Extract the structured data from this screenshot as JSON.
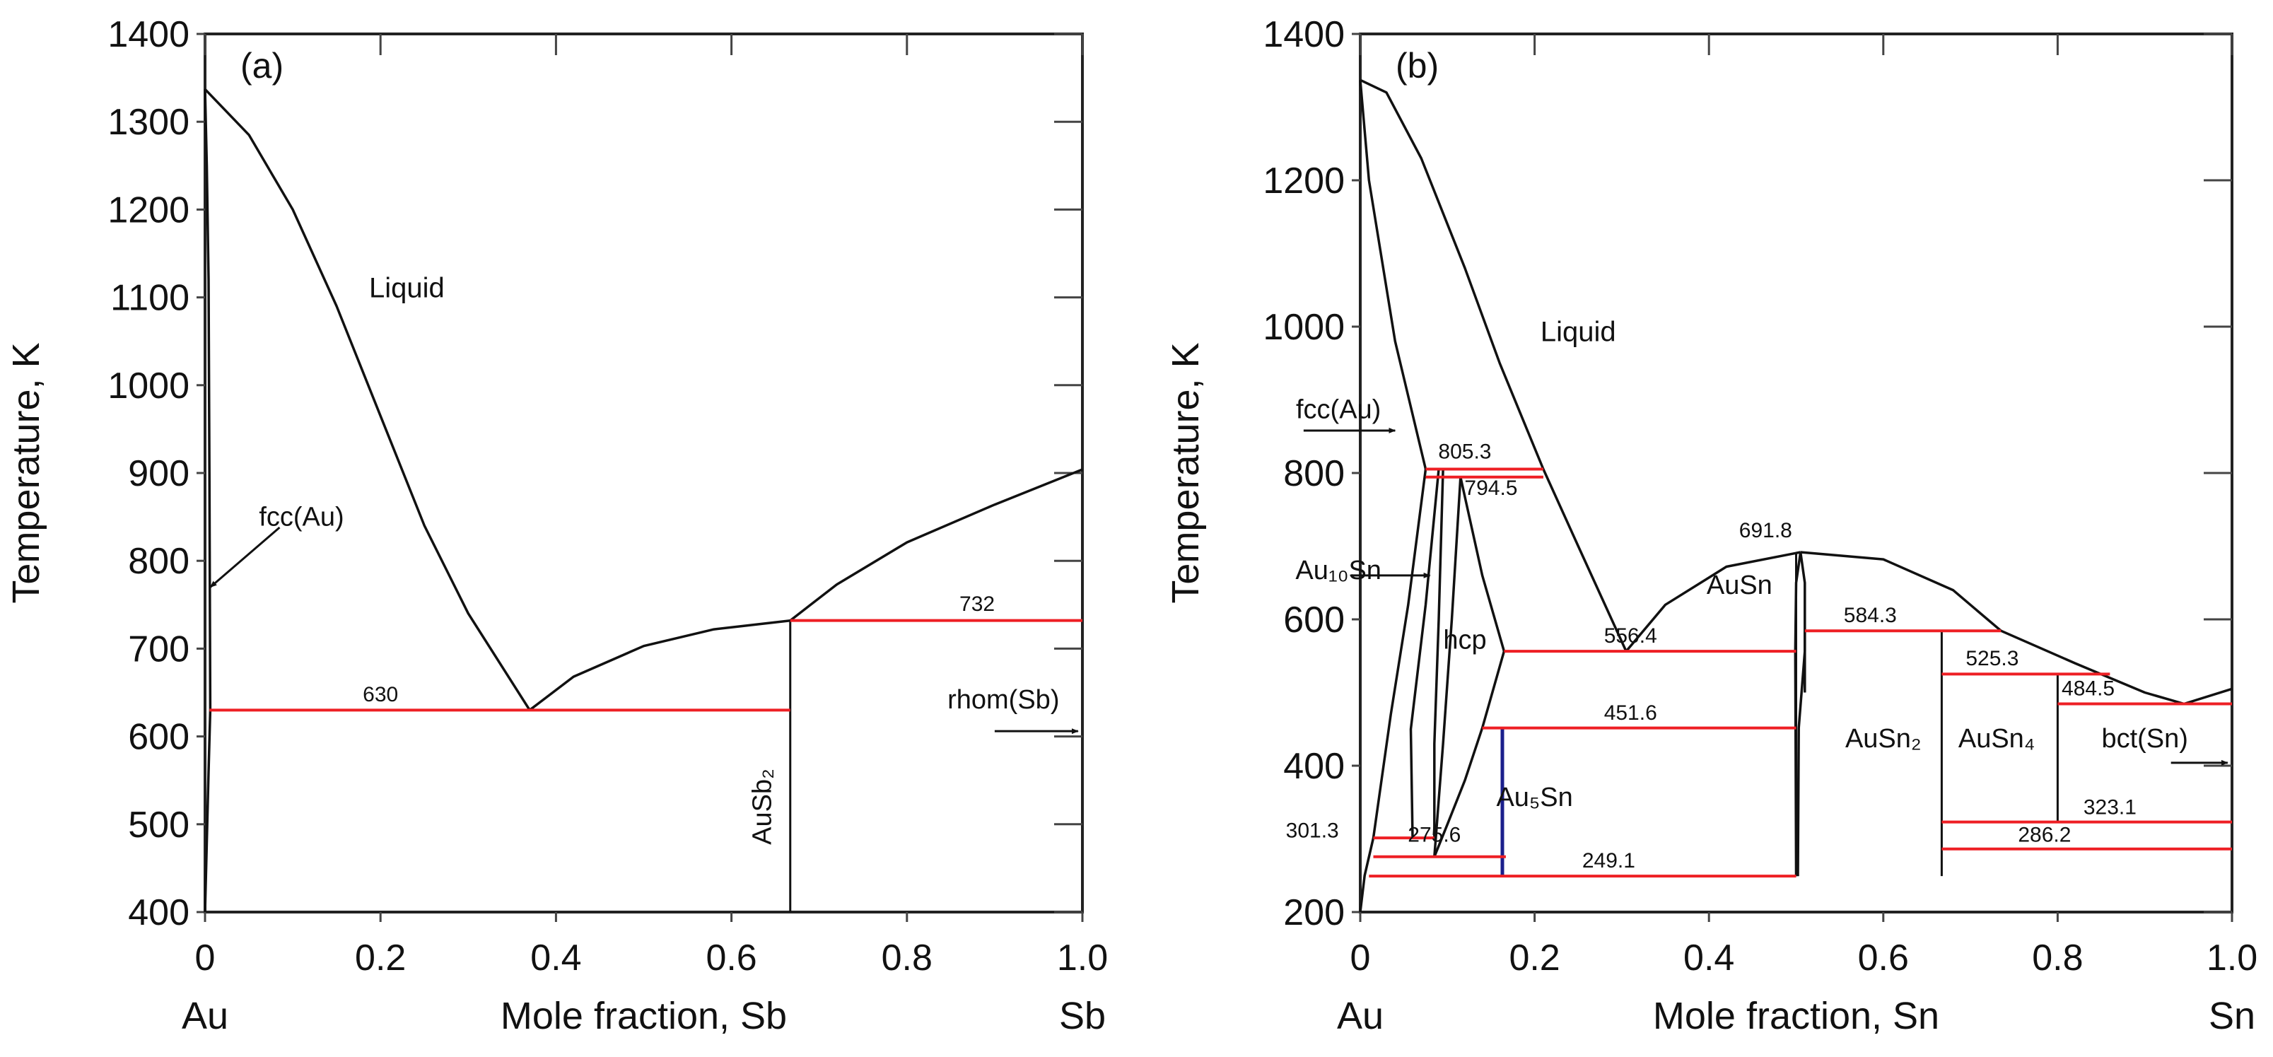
{
  "chart_data": [
    {
      "type": "phase_diagram",
      "panel_label": "(a)",
      "system": "Au-Sb",
      "xlabel": "Mole fraction, Sb",
      "ylabel": "Temperature, K",
      "xlim": [
        0,
        1.0
      ],
      "ylim": [
        400,
        1400
      ],
      "x_ticks": [
        "0",
        "0.2",
        "0.4",
        "0.6",
        "0.8",
        "1.0"
      ],
      "y_ticks": [
        "400",
        "500",
        "600",
        "700",
        "800",
        "900",
        "1000",
        "1100",
        "1200",
        "1300",
        "1400"
      ],
      "x_end_labels": {
        "left": "Au",
        "right": "Sb"
      },
      "regions": [
        {
          "label": "Liquid",
          "x": 0.23,
          "T": 1100
        },
        {
          "label": "fcc(Au)",
          "x": 0.11,
          "T": 840
        },
        {
          "label": "rhom(Sb)",
          "x": 0.91,
          "T": 632
        },
        {
          "label": "AuSb₂",
          "x": 0.645,
          "T": 520
        }
      ],
      "invariants": [
        {
          "T": 630,
          "x_from": 0.005,
          "x_to": 0.667,
          "label": "630"
        },
        {
          "T": 732,
          "x_from": 0.667,
          "x_to": 1.0,
          "label": "732"
        }
      ],
      "compounds": [
        {
          "name": "AuSb₂",
          "x": 0.667,
          "T_from": 400,
          "T_to": 732
        }
      ],
      "curves": [
        {
          "name": "liquidus-Au",
          "points": [
            [
              0,
              1337
            ],
            [
              0.05,
              1285
            ],
            [
              0.1,
              1200
            ],
            [
              0.15,
              1090
            ],
            [
              0.2,
              965
            ],
            [
              0.25,
              840
            ],
            [
              0.3,
              740
            ],
            [
              0.37,
              630
            ]
          ]
        },
        {
          "name": "liquidus-AuSb2",
          "points": [
            [
              0.37,
              630
            ],
            [
              0.42,
              668
            ],
            [
              0.5,
              703
            ],
            [
              0.58,
              722
            ],
            [
              0.667,
              732
            ]
          ]
        },
        {
          "name": "liquidus-Sb",
          "points": [
            [
              0.667,
              732
            ],
            [
              0.72,
              773
            ],
            [
              0.8,
              821
            ],
            [
              0.9,
              864
            ],
            [
              1.0,
              904
            ]
          ]
        },
        {
          "name": "solidus-fcc",
          "points": [
            [
              0,
              1337
            ],
            [
              0.002,
              1250
            ],
            [
              0.004,
              1120
            ],
            [
              0.005,
              900
            ],
            [
              0.006,
              630
            ],
            [
              0.004,
              560
            ],
            [
              0.002,
              480
            ],
            [
              0,
              400
            ]
          ]
        }
      ]
    },
    {
      "type": "phase_diagram",
      "panel_label": "(b)",
      "system": "Au-Sn",
      "xlabel": "Mole fraction, Sn",
      "ylabel": "Temperature, K",
      "xlim": [
        0,
        1.0
      ],
      "ylim": [
        200,
        1400
      ],
      "x_ticks": [
        "0",
        "0.2",
        "0.4",
        "0.6",
        "0.8",
        "1.0"
      ],
      "y_ticks": [
        "200",
        "400",
        "600",
        "800",
        "1000",
        "1200",
        "1400"
      ],
      "x_end_labels": {
        "left": "Au",
        "right": "Sn"
      },
      "regions": [
        {
          "label": "Liquid",
          "x": 0.25,
          "T": 980
        },
        {
          "label": "fcc(Au)",
          "x": -0.025,
          "T": 875
        },
        {
          "label": "Au₁₀Sn",
          "x": -0.025,
          "T": 655
        },
        {
          "label": "hcp",
          "x": 0.12,
          "T": 560
        },
        {
          "label": "AuSn",
          "x": 0.435,
          "T": 635
        },
        {
          "label": "Au₅Sn",
          "x": 0.2,
          "T": 345
        },
        {
          "label": "AuSn₂",
          "x": 0.6,
          "T": 425
        },
        {
          "label": "AuSn₄",
          "x": 0.73,
          "T": 425
        },
        {
          "label": "bct(Sn)",
          "x": 0.9,
          "T": 425
        }
      ],
      "invariants": [
        {
          "T": 805.3,
          "x_from": 0.075,
          "x_to": 0.21,
          "label": "805.3"
        },
        {
          "T": 794.5,
          "x_from": 0.075,
          "x_to": 0.21,
          "label": "794.5"
        },
        {
          "T": 691.8,
          "x_from": 0.505,
          "x_to": 0.505,
          "label": "691.8"
        },
        {
          "T": 556.4,
          "x_from": 0.165,
          "x_to": 0.5,
          "label": "556.4"
        },
        {
          "T": 584.3,
          "x_from": 0.51,
          "x_to": 0.735,
          "label": "584.3"
        },
        {
          "T": 525.3,
          "x_from": 0.667,
          "x_to": 0.86,
          "label": "525.3"
        },
        {
          "T": 484.5,
          "x_from": 0.8,
          "x_to": 1.0,
          "label": "484.5"
        },
        {
          "T": 451.6,
          "x_from": 0.14,
          "x_to": 0.5,
          "label": "451.6"
        },
        {
          "T": 323.1,
          "x_from": 0.667,
          "x_to": 1.0,
          "label": "323.1"
        },
        {
          "T": 301.3,
          "x_from": 0.015,
          "x_to": 0.085,
          "label": "301.3"
        },
        {
          "T": 286.2,
          "x_from": 0.667,
          "x_to": 1.0,
          "label": "286.2"
        },
        {
          "T": 275.6,
          "x_from": 0.015,
          "x_to": 0.167,
          "label": "275.6"
        },
        {
          "T": 249.1,
          "x_from": 0.01,
          "x_to": 0.5,
          "label": "249.1"
        }
      ],
      "compounds": [
        {
          "name": "Au₅Sn",
          "x": 0.163,
          "T_from": 249.1,
          "T_to": 451.6
        },
        {
          "name": "AuSn",
          "x": 0.5,
          "T_from": 249.1,
          "T_to": 691.8
        },
        {
          "name": "AuSn₂",
          "x": 0.667,
          "T_from": 249.1,
          "T_to": 584.3
        },
        {
          "name": "AuSn₄",
          "x": 0.8,
          "T_from": 323.1,
          "T_to": 525.3
        }
      ],
      "curves": [
        {
          "name": "liquidus-Au",
          "points": [
            [
              0,
              1337
            ],
            [
              0.03,
              1320
            ],
            [
              0.07,
              1230
            ],
            [
              0.12,
              1080
            ],
            [
              0.16,
              950
            ],
            [
              0.21,
              805.3
            ]
          ]
        },
        {
          "name": "liquidus-mid",
          "points": [
            [
              0.21,
              805.3
            ],
            [
              0.25,
              700
            ],
            [
              0.305,
              556.4
            ]
          ]
        },
        {
          "name": "liquidus-AuSn-left",
          "points": [
            [
              0.305,
              556.4
            ],
            [
              0.35,
              620
            ],
            [
              0.42,
              672
            ],
            [
              0.505,
              691.8
            ]
          ]
        },
        {
          "name": "liquidus-AuSn-right",
          "points": [
            [
              0.505,
              691.8
            ],
            [
              0.6,
              682
            ],
            [
              0.68,
              640
            ],
            [
              0.735,
              584.3
            ]
          ]
        },
        {
          "name": "liquidus-Sn",
          "points": [
            [
              0.735,
              584.3
            ],
            [
              0.82,
              540
            ],
            [
              0.9,
              500
            ],
            [
              0.945,
              484.5
            ],
            [
              1.0,
              505
            ]
          ]
        },
        {
          "name": "fcc-solidus",
          "points": [
            [
              0,
              1337
            ],
            [
              0.01,
              1200
            ],
            [
              0.04,
              980
            ],
            [
              0.075,
              805.3
            ]
          ]
        },
        {
          "name": "fcc-solvus",
          "points": [
            [
              0.075,
              805.3
            ],
            [
              0.055,
              620
            ],
            [
              0.035,
              470
            ],
            [
              0.015,
              301.3
            ],
            [
              0.005,
              250
            ],
            [
              0,
              200
            ]
          ]
        },
        {
          "name": "au10sn-left",
          "points": [
            [
              0.09,
              805.3
            ],
            [
              0.075,
              620
            ],
            [
              0.058,
              450
            ],
            [
              0.06,
              301.3
            ]
          ]
        },
        {
          "name": "au10sn-right",
          "points": [
            [
              0.095,
              805.3
            ],
            [
              0.09,
              600
            ],
            [
              0.085,
              430
            ],
            [
              0.085,
              301.3
            ]
          ]
        },
        {
          "name": "hcp-left",
          "points": [
            [
              0.115,
              794.5
            ],
            [
              0.105,
              600
            ],
            [
              0.095,
              430
            ],
            [
              0.085,
              275.6
            ]
          ]
        },
        {
          "name": "hcp-right",
          "points": [
            [
              0.115,
              794.5
            ],
            [
              0.14,
              660
            ],
            [
              0.165,
              556.4
            ]
          ]
        },
        {
          "name": "hcp-solvus",
          "points": [
            [
              0.165,
              556.4
            ],
            [
              0.14,
              451.6
            ],
            [
              0.12,
              380
            ],
            [
              0.1,
              320
            ],
            [
              0.085,
              275.6
            ]
          ]
        },
        {
          "name": "ausn-left",
          "points": [
            [
              0.5,
              249.1
            ],
            [
              0.499,
              556.4
            ],
            [
              0.5,
              650
            ],
            [
              0.505,
              691.8
            ]
          ]
        },
        {
          "name": "ausn-right",
          "points": [
            [
              0.505,
              691.8
            ],
            [
              0.51,
              650
            ],
            [
              0.51,
              556.4
            ],
            [
              0.503,
              451.6
            ],
            [
              0.502,
              249.1
            ]
          ]
        },
        {
          "name": "liquid-ausn2-edge",
          "points": [
            [
              0.51,
              584.3
            ],
            [
              0.51,
              500
            ]
          ]
        }
      ]
    }
  ]
}
